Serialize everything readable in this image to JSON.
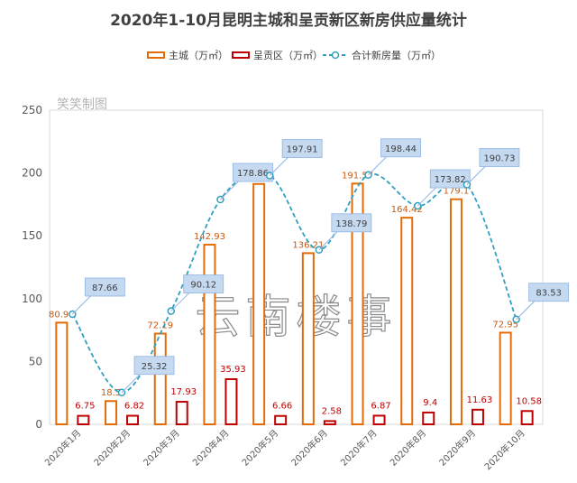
{
  "chart_data": {
    "type": "bar",
    "title": "2020年1-10月昆明主城和呈贡新区新房供应量统计",
    "categories": [
      "2020年1月",
      "2020年2月",
      "2020年3月",
      "2020年4月",
      "2020年5月",
      "2020年6月",
      "2020年7月",
      "2020年8月",
      "2020年9月",
      "2020年10月"
    ],
    "series": [
      {
        "name": "主城（万㎡）",
        "type": "bar",
        "color": "#e36c09",
        "values": [
          80.91,
          18.5,
          72.19,
          142.93,
          191.25,
          136.21,
          191.57,
          164.42,
          179.1,
          72.95
        ]
      },
      {
        "name": "呈贡区（万㎡）",
        "type": "bar",
        "color": "#c00000",
        "values": [
          6.75,
          6.82,
          17.93,
          35.93,
          6.66,
          2.58,
          6.87,
          9.4,
          11.63,
          10.58
        ]
      },
      {
        "name": "合计新房量（万㎡）",
        "type": "line",
        "color": "#31a0c0",
        "values": [
          87.66,
          25.32,
          90.12,
          178.86,
          197.91,
          138.79,
          198.44,
          173.82,
          190.73,
          83.53
        ]
      }
    ],
    "ylim": [
      0,
      250
    ],
    "yticks": [
      0,
      50,
      100,
      150,
      200,
      250
    ],
    "legend": "top"
  },
  "watermark": {
    "corner": "笑笑制图",
    "center": "云南楼事"
  },
  "colors": {
    "label_box": "#c5d9f1",
    "axis": "#d9d9d9"
  }
}
